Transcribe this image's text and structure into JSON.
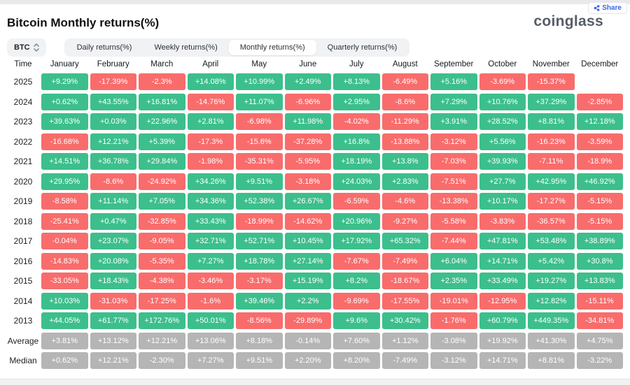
{
  "header": {
    "title": "Bitcoin Monthly returns(%)",
    "logo": "coinglass",
    "share_label": "Share"
  },
  "controls": {
    "coin_selector": "BTC",
    "tabs": [
      {
        "label": "Daily returns(%)",
        "active": false
      },
      {
        "label": "Weekly returns(%)",
        "active": false
      },
      {
        "label": "Monthly returns(%)",
        "active": true
      },
      {
        "label": "Quarterly returns(%)",
        "active": false
      }
    ]
  },
  "colors": {
    "positive": "#3cbf8c",
    "negative": "#f96c6c",
    "neutral": "#b5b5b5",
    "accent": "#3b6ae3"
  },
  "table": {
    "type": "table",
    "columns": [
      "Time",
      "January",
      "February",
      "March",
      "April",
      "May",
      "June",
      "July",
      "August",
      "September",
      "October",
      "November",
      "December"
    ],
    "rows": [
      {
        "label": "2025",
        "type": "year",
        "values": [
          "+9.29%",
          "-17.39%",
          "-2.3%",
          "+14.08%",
          "+10.99%",
          "+2.49%",
          "+8.13%",
          "-6.49%",
          "+5.16%",
          "-3.69%",
          "-15.37%",
          null
        ]
      },
      {
        "label": "2024",
        "type": "year",
        "values": [
          "+0.62%",
          "+43.55%",
          "+16.81%",
          "-14.76%",
          "+11.07%",
          "-6.96%",
          "+2.95%",
          "-8.6%",
          "+7.29%",
          "+10.76%",
          "+37.29%",
          "-2.85%"
        ]
      },
      {
        "label": "2023",
        "type": "year",
        "values": [
          "+39.63%",
          "+0.03%",
          "+22.96%",
          "+2.81%",
          "-6.98%",
          "+11.98%",
          "-4.02%",
          "-11.29%",
          "+3.91%",
          "+28.52%",
          "+8.81%",
          "+12.18%"
        ]
      },
      {
        "label": "2022",
        "type": "year",
        "values": [
          "-16.68%",
          "+12.21%",
          "+5.39%",
          "-17.3%",
          "-15.6%",
          "-37.28%",
          "+16.8%",
          "-13.88%",
          "-3.12%",
          "+5.56%",
          "-16.23%",
          "-3.59%"
        ]
      },
      {
        "label": "2021",
        "type": "year",
        "values": [
          "+14.51%",
          "+36.78%",
          "+29.84%",
          "-1.98%",
          "-35.31%",
          "-5.95%",
          "+18.19%",
          "+13.8%",
          "-7.03%",
          "+39.93%",
          "-7.11%",
          "-18.9%"
        ]
      },
      {
        "label": "2020",
        "type": "year",
        "values": [
          "+29.95%",
          "-8.6%",
          "-24.92%",
          "+34.26%",
          "+9.51%",
          "-3.18%",
          "+24.03%",
          "+2.83%",
          "-7.51%",
          "+27.7%",
          "+42.95%",
          "+46.92%"
        ]
      },
      {
        "label": "2019",
        "type": "year",
        "values": [
          "-8.58%",
          "+11.14%",
          "+7.05%",
          "+34.36%",
          "+52.38%",
          "+26.67%",
          "-6.59%",
          "-4.6%",
          "-13.38%",
          "+10.17%",
          "-17.27%",
          "-5.15%"
        ]
      },
      {
        "label": "2018",
        "type": "year",
        "values": [
          "-25.41%",
          "+0.47%",
          "-32.85%",
          "+33.43%",
          "-18.99%",
          "-14.62%",
          "+20.96%",
          "-9.27%",
          "-5.58%",
          "-3.83%",
          "-36.57%",
          "-5.15%"
        ]
      },
      {
        "label": "2017",
        "type": "year",
        "values": [
          "-0.04%",
          "+23.07%",
          "-9.05%",
          "+32.71%",
          "+52.71%",
          "+10.45%",
          "+17.92%",
          "+65.32%",
          "-7.44%",
          "+47.81%",
          "+53.48%",
          "+38.89%"
        ]
      },
      {
        "label": "2016",
        "type": "year",
        "values": [
          "-14.83%",
          "+20.08%",
          "-5.35%",
          "+7.27%",
          "+18.78%",
          "+27.14%",
          "-7.67%",
          "-7.49%",
          "+6.04%",
          "+14.71%",
          "+5.42%",
          "+30.8%"
        ]
      },
      {
        "label": "2015",
        "type": "year",
        "values": [
          "-33.05%",
          "+18.43%",
          "-4.38%",
          "-3.46%",
          "-3.17%",
          "+15.19%",
          "+8.2%",
          "-18.67%",
          "+2.35%",
          "+33.49%",
          "+19.27%",
          "+13.83%"
        ]
      },
      {
        "label": "2014",
        "type": "year",
        "values": [
          "+10.03%",
          "-31.03%",
          "-17.25%",
          "-1.6%",
          "+39.46%",
          "+2.2%",
          "-9.69%",
          "-17.55%",
          "-19.01%",
          "-12.95%",
          "+12.82%",
          "-15.11%"
        ]
      },
      {
        "label": "2013",
        "type": "year",
        "values": [
          "+44.05%",
          "+61.77%",
          "+172.76%",
          "+50.01%",
          "-8.56%",
          "-29.89%",
          "+9.6%",
          "+30.42%",
          "-1.76%",
          "+60.79%",
          "+449.35%",
          "-34.81%"
        ]
      },
      {
        "label": "Average",
        "type": "stat",
        "values": [
          "+3.81%",
          "+13.12%",
          "+12.21%",
          "+13.06%",
          "+8.18%",
          "-0.14%",
          "+7.60%",
          "+1.12%",
          "-3.08%",
          "+19.92%",
          "+41.30%",
          "+4.75%"
        ]
      },
      {
        "label": "Median",
        "type": "stat",
        "values": [
          "+0.62%",
          "+12.21%",
          "-2.30%",
          "+7.27%",
          "+9.51%",
          "+2.20%",
          "+8.20%",
          "-7.49%",
          "-3.12%",
          "+14.71%",
          "+8.81%",
          "-3.22%"
        ]
      }
    ]
  }
}
